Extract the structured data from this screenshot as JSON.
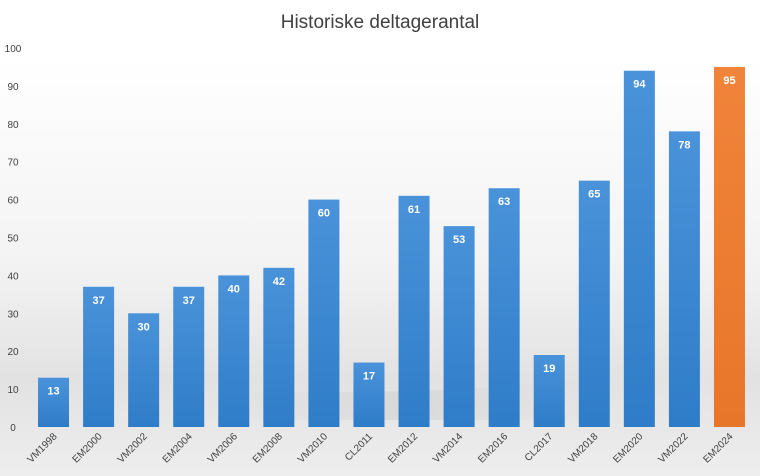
{
  "chart_data": {
    "type": "bar",
    "title": "Historiske deltagerantal",
    "xlabel": "",
    "ylabel": "",
    "ylim": [
      0,
      100
    ],
    "yticks": [
      "0",
      "10",
      "20",
      "30",
      "40",
      "50",
      "60",
      "70",
      "80",
      "90",
      "100"
    ],
    "categories": [
      "VM1998",
      "EM2000",
      "VM2002",
      "EM2004",
      "VM2006",
      "EM2008",
      "VM2010",
      "CL2011",
      "EM2012",
      "VM2014",
      "EM2016",
      "CL2017",
      "VM2018",
      "EM2020",
      "VM2022",
      "EM2024"
    ],
    "values": [
      13,
      37,
      30,
      37,
      40,
      42,
      60,
      17,
      61,
      53,
      63,
      19,
      65,
      94,
      78,
      95
    ],
    "data_labels": [
      "13",
      "37",
      "30",
      "37",
      "40",
      "42",
      "60",
      "17",
      "61",
      "53",
      "63",
      "19",
      "65",
      "94",
      "78",
      "95"
    ],
    "grid": false,
    "legend": "none",
    "colors": {
      "bar": "#3f8ad2",
      "bar_highlight": "#ee7f30",
      "highlight_category": "EM2024",
      "data_label": "#ffffff",
      "text": "#404040"
    }
  }
}
